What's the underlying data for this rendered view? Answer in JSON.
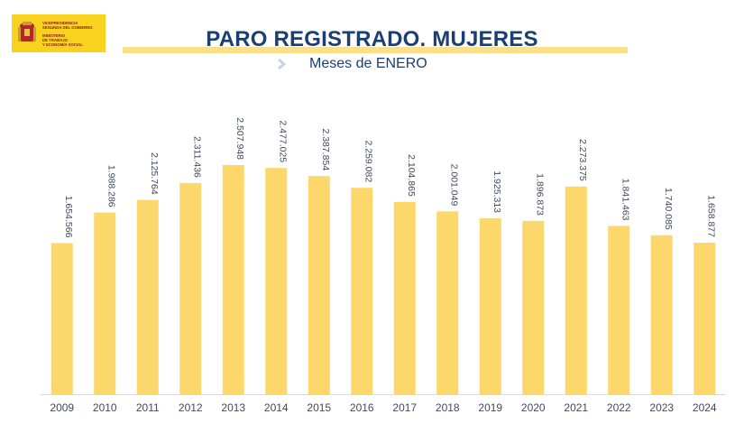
{
  "logo": {
    "line1": "VICEPRESIDENCIA",
    "line2": "SEGUNDA DEL GOBIERNO",
    "line3": "MINISTERIO",
    "line4": "DE TRABAJO",
    "line5": "Y ECONOMÍA SOCIAL"
  },
  "header": {
    "title": "PARO REGISTRADO. MUJERES",
    "subtitle": "Meses de ENERO"
  },
  "colors": {
    "bar": "#fcd86c",
    "title": "#1b3f73",
    "accent_bar": "#fce089",
    "logo_bg": "#f9d21f"
  },
  "chart_data": {
    "type": "bar",
    "categories": [
      "2009",
      "2010",
      "2011",
      "2012",
      "2013",
      "2014",
      "2015",
      "2016",
      "2017",
      "2018",
      "2019",
      "2020",
      "2021",
      "2022",
      "2023",
      "2024"
    ],
    "values": [
      1654566,
      1988286,
      2125764,
      2311436,
      2507948,
      2477025,
      2387854,
      2259082,
      2104865,
      2001049,
      1925313,
      1896873,
      2273375,
      1841463,
      1740085,
      1658877
    ],
    "value_labels": [
      "1.654.566",
      "1.988.286",
      "2.125.764",
      "2.311.436",
      "2.507.948",
      "2.477.025",
      "2.387.854",
      "2.259.082",
      "2.104.865",
      "2.001.049",
      "1.925.313",
      "1.896.873",
      "2.273.375",
      "1.841.463",
      "1.740.085",
      "1.658.877"
    ],
    "title": "PARO REGISTRADO. MUJERES",
    "subtitle": "Meses de ENERO",
    "xlabel": "",
    "ylabel": "",
    "ylim": [
      0,
      2600000
    ],
    "grid": false,
    "legend": "none",
    "data_labels": "rotated-vertical-above-bars"
  }
}
